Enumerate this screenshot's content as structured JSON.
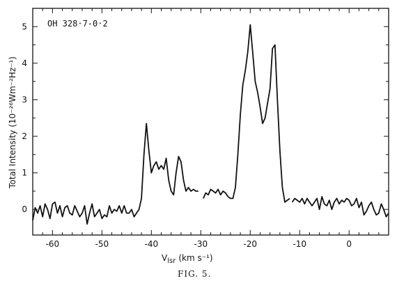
{
  "chart_data": {
    "type": "line",
    "annotation": "OH 328·7-0·2",
    "xlabel": "V",
    "xlabel_sub": "lsr",
    "xlabel_units": "(km s⁻¹)",
    "ylabel": "Total Intensity (10⁻²⁶Wm⁻²Hz⁻¹)",
    "caption": "FIG. 5.",
    "xlim": [
      -64,
      8
    ],
    "ylim": [
      -0.7,
      5.5
    ],
    "x_ticks": [
      -60,
      -50,
      -40,
      -30,
      -20,
      -10,
      0
    ],
    "x_tick_labels": [
      "-60",
      "-50",
      "-40",
      "-30",
      "-20",
      "-10",
      "0"
    ],
    "y_ticks": [
      0,
      1,
      2,
      3,
      4,
      5
    ],
    "y_tick_labels": [
      "0",
      "1",
      "2",
      "3",
      "4",
      "5"
    ],
    "grid": false,
    "series": [
      {
        "x": [
          -64,
          -63.5,
          -63,
          -62.5,
          -62,
          -61.5,
          -61,
          -60.5,
          -60,
          -59.5,
          -59,
          -58.5,
          -58,
          -57.5,
          -57,
          -56.5,
          -56,
          -55.5,
          -55,
          -54.5,
          -54,
          -53.5,
          -53,
          -52.5,
          -52,
          -51.5,
          -51,
          -50.5,
          -50,
          -49.5,
          -49,
          -48.5,
          -48,
          -47.5,
          -47,
          -46.5,
          -46,
          -45.5,
          -45,
          -44.5,
          -44,
          -43.5,
          -43,
          -42.5,
          -42,
          -41.5,
          -41,
          -40.5,
          -40,
          -39.5,
          -39,
          -38.5,
          -38,
          -37.5,
          -37,
          -36.5,
          -36,
          -35.5,
          -35,
          -34.5,
          -34,
          -33.5,
          -33,
          -32.5,
          -32,
          -31.5,
          -31,
          -30.5
        ],
        "y": [
          -0.3,
          0.05,
          -0.1,
          0.1,
          -0.2,
          0.15,
          0.0,
          -0.25,
          0.15,
          0.2,
          -0.1,
          0.1,
          -0.2,
          0.05,
          0.1,
          -0.1,
          -0.15,
          0.1,
          -0.05,
          -0.2,
          -0.1,
          0.1,
          -0.4,
          -0.1,
          0.15,
          -0.2,
          -0.1,
          0.0,
          -0.25,
          -0.15,
          -0.2,
          0.1,
          -0.1,
          0.0,
          -0.05,
          0.1,
          -0.1,
          0.1,
          -0.1,
          -0.1,
          0.0,
          -0.2,
          -0.1,
          0.0,
          0.3,
          1.5,
          2.35,
          1.6,
          1.0,
          1.2,
          1.3,
          1.1,
          1.2,
          1.1,
          1.4,
          0.8,
          0.5,
          0.4,
          1.0,
          1.45,
          1.3,
          0.8,
          0.5,
          0.6,
          0.5,
          0.55,
          0.5,
          0.5
        ]
      },
      {
        "x": [
          -29.5,
          -29,
          -28.5,
          -28,
          -27.5,
          -27,
          -26.5,
          -26,
          -25.5,
          -25,
          -24.5,
          -24,
          -23.5,
          -23,
          -22.5,
          -22,
          -21.5,
          -21,
          -20.5,
          -20,
          -19.5,
          -19,
          -18.5,
          -18,
          -17.5,
          -17,
          -16.5,
          -16,
          -15.5,
          -15,
          -14.5,
          -14,
          -13.5,
          -13,
          -12.5,
          -12
        ],
        "y": [
          0.3,
          0.45,
          0.4,
          0.55,
          0.5,
          0.45,
          0.55,
          0.4,
          0.5,
          0.45,
          0.35,
          0.3,
          0.3,
          0.6,
          1.5,
          2.6,
          3.4,
          3.8,
          4.3,
          5.05,
          4.3,
          3.5,
          3.2,
          2.8,
          2.35,
          2.5,
          2.9,
          3.3,
          4.4,
          4.5,
          3.0,
          1.6,
          0.6,
          0.2,
          0.25,
          0.3
        ]
      },
      {
        "x": [
          -11.5,
          -11,
          -10.5,
          -10,
          -9.5,
          -9,
          -8.5,
          -8,
          -7.5,
          -7,
          -6.5,
          -6,
          -5.5,
          -5,
          -4.5,
          -4,
          -3.5,
          -3,
          -2.5,
          -2,
          -1.5,
          -1,
          -0.5,
          0,
          0.5,
          1,
          1.5,
          2,
          2.5,
          3,
          3.5,
          4,
          4.5,
          5,
          5.5,
          6,
          6.5,
          7,
          7.5,
          8
        ],
        "y": [
          0.2,
          0.3,
          0.25,
          0.2,
          0.3,
          0.15,
          0.3,
          0.2,
          0.1,
          0.2,
          0.3,
          0.0,
          0.35,
          0.15,
          0.1,
          0.25,
          0.0,
          0.2,
          0.3,
          0.15,
          0.25,
          0.2,
          0.3,
          0.25,
          0.1,
          0.15,
          0.3,
          0.05,
          0.2,
          -0.15,
          -0.05,
          0.1,
          0.2,
          0.0,
          -0.15,
          -0.1,
          0.15,
          0.0,
          -0.2,
          -0.1
        ]
      }
    ]
  }
}
